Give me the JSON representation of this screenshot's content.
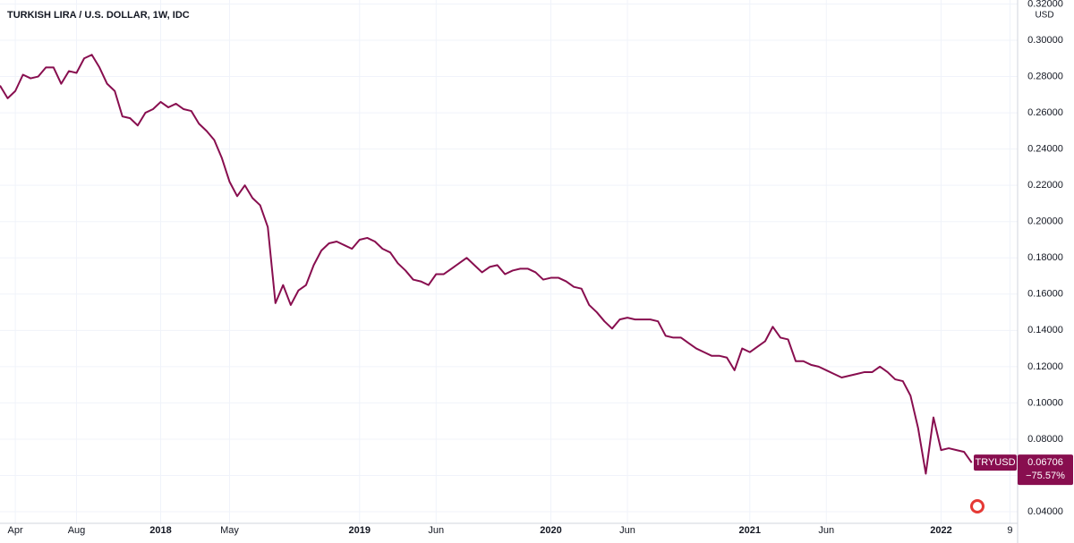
{
  "chart_data": {
    "type": "line",
    "title": "TURKISH LIRA / U.S. DOLLAR, 1W, IDC",
    "y_unit": "USD",
    "change_label": "−75.57%",
    "categories": [
      null,
      null,
      "Apr",
      null,
      null,
      null,
      null,
      null,
      null,
      null,
      "Aug",
      null,
      null,
      null,
      null,
      null,
      null,
      null,
      null,
      null,
      null,
      "2018",
      null,
      null,
      null,
      null,
      null,
      null,
      null,
      null,
      "May",
      null,
      null,
      null,
      null,
      null,
      null,
      null,
      null,
      null,
      null,
      null,
      null,
      null,
      null,
      null,
      null,
      "2019",
      null,
      null,
      null,
      null,
      null,
      null,
      null,
      null,
      null,
      "Jun",
      null,
      null,
      null,
      null,
      null,
      null,
      null,
      null,
      null,
      null,
      null,
      null,
      null,
      null,
      "2020",
      null,
      null,
      null,
      null,
      null,
      null,
      null,
      null,
      null,
      "Jun",
      null,
      null,
      null,
      null,
      null,
      null,
      null,
      null,
      null,
      null,
      null,
      null,
      null,
      null,
      null,
      "2021",
      null,
      null,
      null,
      null,
      null,
      null,
      null,
      null,
      null,
      "Jun",
      null,
      null,
      null,
      null,
      null,
      null,
      null,
      null,
      null,
      null,
      null,
      null,
      null,
      null,
      "2022",
      null,
      null,
      null,
      null,
      null,
      null,
      null,
      null,
      "9",
      null
    ],
    "series": [
      {
        "name": "TRYUSD",
        "color": "#880e4f",
        "values": [
          0.275,
          0.268,
          0.272,
          0.281,
          0.279,
          0.28,
          0.285,
          0.285,
          0.276,
          0.283,
          0.282,
          0.29,
          0.292,
          0.285,
          0.276,
          0.272,
          0.258,
          0.257,
          0.253,
          0.26,
          0.262,
          0.266,
          0.263,
          0.265,
          0.262,
          0.261,
          0.254,
          0.25,
          0.245,
          0.235,
          0.222,
          0.214,
          0.22,
          0.213,
          0.209,
          0.197,
          0.155,
          0.165,
          0.154,
          0.162,
          0.165,
          0.176,
          0.184,
          0.188,
          0.189,
          0.187,
          0.185,
          0.19,
          0.191,
          0.189,
          0.185,
          0.183,
          0.177,
          0.173,
          0.168,
          0.167,
          0.165,
          0.171,
          0.171,
          0.174,
          0.177,
          0.18,
          0.176,
          0.172,
          0.175,
          0.176,
          0.171,
          0.173,
          0.174,
          0.174,
          0.172,
          0.168,
          0.169,
          0.169,
          0.167,
          0.164,
          0.163,
          0.154,
          0.15,
          0.145,
          0.141,
          0.146,
          0.147,
          0.146,
          0.146,
          0.146,
          0.145,
          0.137,
          0.136,
          0.136,
          0.133,
          0.13,
          0.128,
          0.126,
          0.126,
          0.125,
          0.118,
          0.13,
          0.128,
          0.131,
          0.134,
          0.142,
          0.136,
          0.135,
          0.123,
          0.123,
          0.121,
          0.12,
          0.118,
          0.116,
          0.114,
          0.115,
          0.116,
          0.117,
          0.117,
          0.12,
          0.117,
          0.113,
          0.112,
          0.104,
          0.086,
          0.061,
          0.092,
          0.074,
          0.075,
          0.074,
          0.073,
          0.06706,
          null,
          null,
          null,
          null,
          null,
          null
        ]
      }
    ],
    "ylim": [
      0.0336,
      0.3222
    ],
    "yticks": [
      {
        "value": 0.04,
        "label": "0.04000"
      },
      {
        "value": 0.06,
        "label": "0.06000"
      },
      {
        "value": 0.08,
        "label": "0.08000"
      },
      {
        "value": 0.1,
        "label": "0.10000"
      },
      {
        "value": 0.12,
        "label": "0.12000"
      },
      {
        "value": 0.14,
        "label": "0.14000"
      },
      {
        "value": 0.16,
        "label": "0.16000"
      },
      {
        "value": 0.18,
        "label": "0.18000"
      },
      {
        "value": 0.2,
        "label": "0.20000"
      },
      {
        "value": 0.22,
        "label": "0.22000"
      },
      {
        "value": 0.24,
        "label": "0.24000"
      },
      {
        "value": 0.26,
        "label": "0.26000"
      },
      {
        "value": 0.28,
        "label": "0.28000"
      },
      {
        "value": 0.3,
        "label": "0.30000"
      },
      {
        "value": 0.32,
        "label": "0.32000"
      }
    ],
    "grid": true
  }
}
